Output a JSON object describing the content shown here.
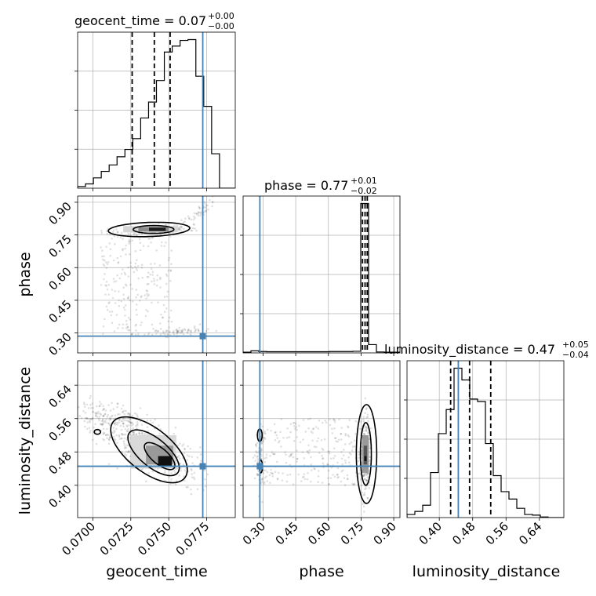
{
  "chart_data": {
    "type": "corner",
    "parameters": [
      {
        "name": "geocent_time",
        "axis_label": "geocent_time",
        "title_main": "geocent_time = 0.07",
        "title_plus": "+0.00",
        "title_minus": "−0.00",
        "range": [
          0.069,
          0.07938
        ],
        "ticks": [
          0.07,
          0.0725,
          0.075,
          0.0775
        ],
        "tick_labels": [
          "0.0700",
          "0.0725",
          "0.0750",
          "0.0775"
        ],
        "quantiles": [
          0.07259,
          0.07405,
          0.07509
        ],
        "truth": 0.07724,
        "hist_edges_start": 0.069,
        "hist_bin_width": 0.000519,
        "hist_counts": [
          0.4,
          1.0,
          2.4,
          3.9,
          5.4,
          7.3,
          9.0,
          11.5,
          16.3,
          20.0,
          25.0,
          31.6,
          33.0,
          34.3,
          34.5,
          26.0,
          19.0,
          8.0,
          0,
          0
        ]
      },
      {
        "name": "phase",
        "axis_label": "phase",
        "title_main": "phase = 0.77",
        "title_plus": "+0.01",
        "title_minus": "−0.02",
        "range": [
          0.2085,
          0.9285
        ],
        "ticks": [
          0.3,
          0.45,
          0.6,
          0.75,
          0.9
        ],
        "tick_labels": [
          "0.30",
          "0.45",
          "0.60",
          "0.75",
          "0.90"
        ],
        "quantiles": [
          0.7567,
          0.7683,
          0.7786
        ],
        "truth": 0.2854,
        "hist_edges_start": 0.2085,
        "hist_bin_width": 0.036,
        "hist_counts": [
          0.3,
          0.9,
          0.6,
          0.5,
          0.5,
          0.5,
          0.5,
          0.5,
          0.5,
          0.5,
          0.5,
          0.6,
          0.6,
          0.6,
          0.7,
          65.0,
          3.6,
          0.4,
          0.3,
          0.3
        ]
      },
      {
        "name": "luminosity_distance",
        "axis_label": "luminosity_distance",
        "title_main": "luminosity_distance = 0.47",
        "title_plus": "+0.05",
        "title_minus": "−0.04",
        "range": [
          0.3226,
          0.6986
        ],
        "ticks": [
          0.4,
          0.48,
          0.56,
          0.64
        ],
        "tick_labels": [
          "0.40",
          "0.48",
          "0.56",
          "0.64"
        ],
        "quantiles": [
          0.4272,
          0.4726,
          0.5233
        ],
        "truth": 0.4456,
        "hist_edges_start": 0.3226,
        "hist_bin_width": 0.0188,
        "hist_counts": [
          0.5,
          1.0,
          2.0,
          7.3,
          13.6,
          17.5,
          24.2,
          22.3,
          19.2,
          18.8,
          12.0,
          6.8,
          4.2,
          3.0,
          1.5,
          0.5,
          0.4,
          0.1,
          0,
          0
        ]
      }
    ],
    "truth_color": "#4682b4",
    "grid": true
  }
}
